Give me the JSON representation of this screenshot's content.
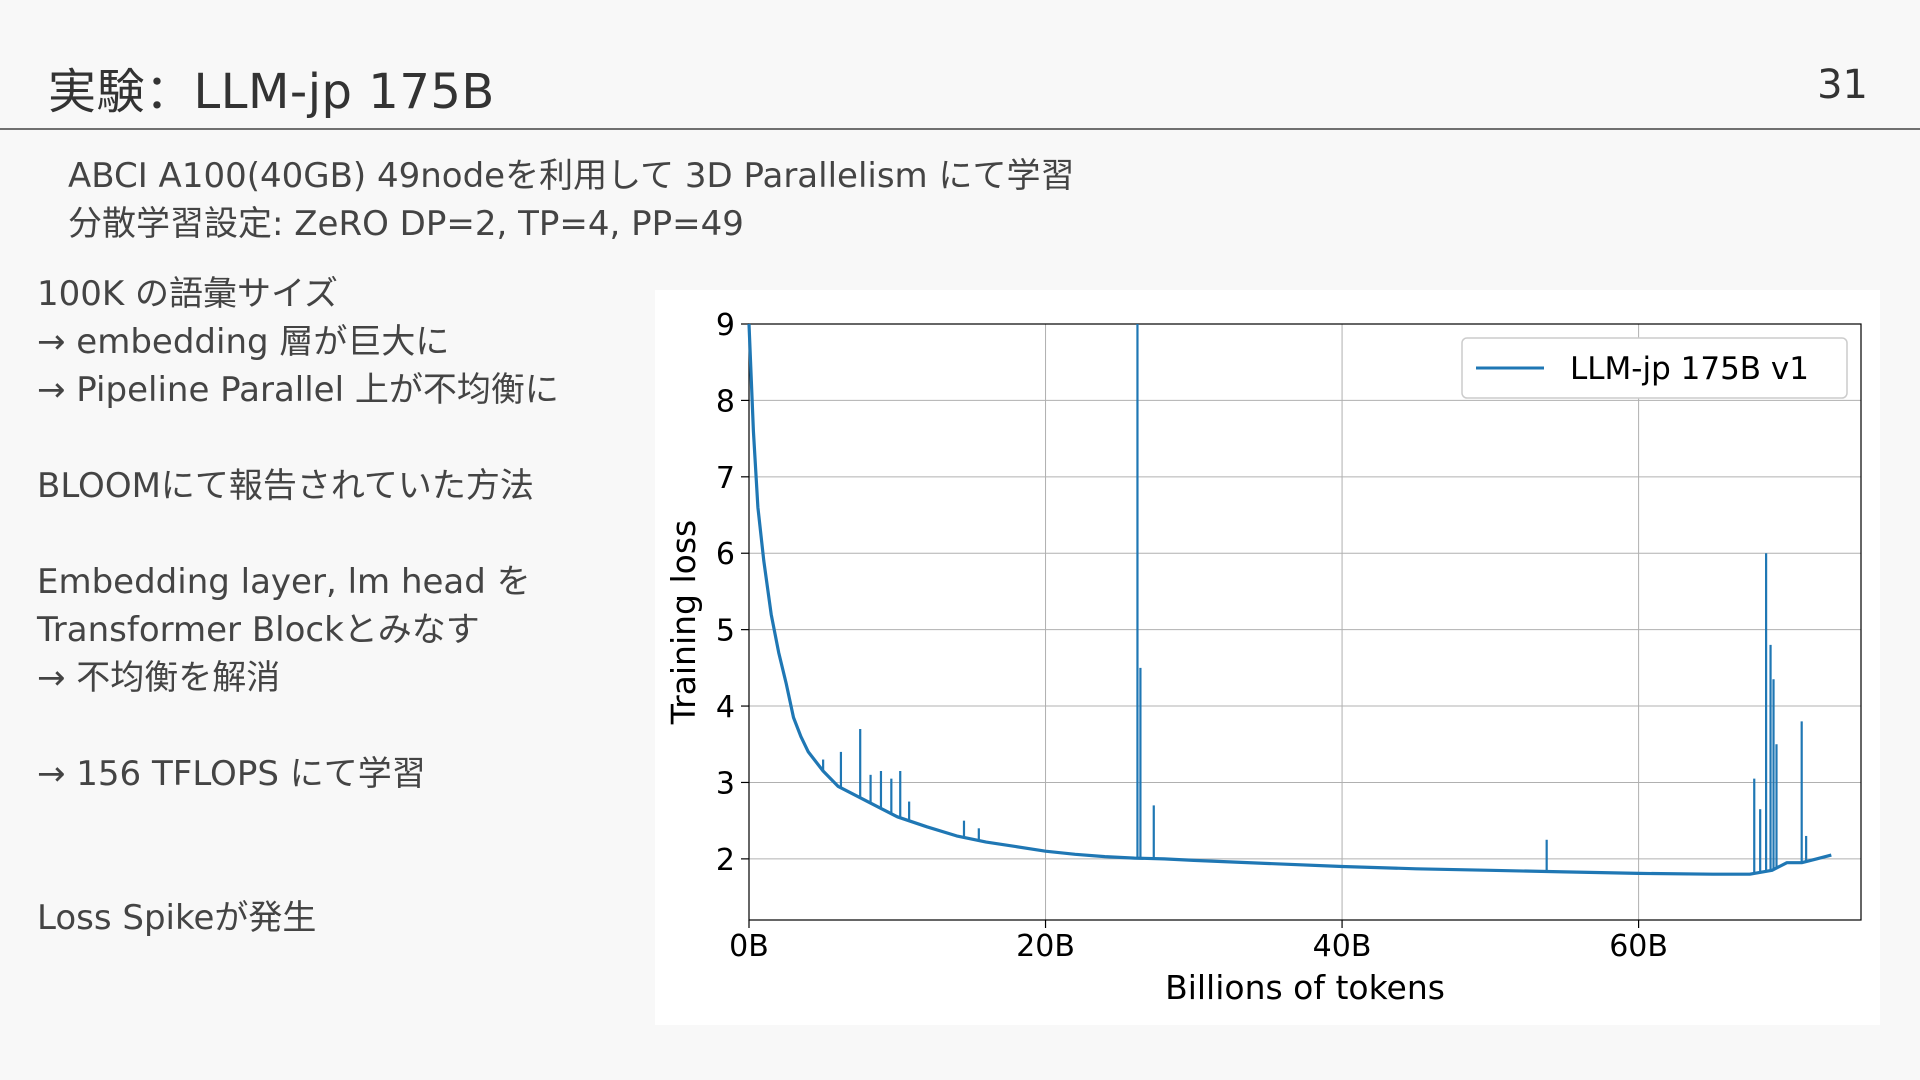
{
  "slide": {
    "title": "実験：LLM-jp 175B",
    "page_number": "31"
  },
  "subtitle": {
    "line1": "ABCI A100(40GB) 49nodeを利用して 3D Parallelism にて学習",
    "line2": "分散学習設定: ZeRO DP=2, TP=4, PP=49"
  },
  "notes": {
    "vocab_line": "100K の語彙サイズ",
    "embedding_line": "→ embedding 層が巨大に",
    "pipeline_line": "→ Pipeline Parallel 上が不均衡に",
    "bloom_line": "BLOOMにて報告されていた方法",
    "layers_line": "Embedding layer, lm head を",
    "block_line": "Transformer Blockとみなす",
    "resolve_line": "→ 不均衡を解消",
    "tflops_line": "→ 156 TFLOPS にて学習",
    "spike_line": "Loss Spikeが発生"
  },
  "colors": {
    "series": "#1f77b4",
    "grid": "#b0b0b0",
    "text": "#3b3b3b"
  },
  "chart_data": {
    "type": "line",
    "title": "",
    "xlabel": "Billions of tokens",
    "ylabel": "Training loss",
    "xlim": [
      0,
      75
    ],
    "ylim": [
      1.2,
      9
    ],
    "x_ticks": [
      0,
      20,
      40,
      60
    ],
    "x_tick_labels": [
      "0B",
      "20B",
      "40B",
      "60B"
    ],
    "y_ticks": [
      2,
      3,
      4,
      5,
      6,
      7,
      8,
      9
    ],
    "y_tick_labels": [
      "2",
      "3",
      "4",
      "5",
      "6",
      "7",
      "8",
      "9"
    ],
    "grid": true,
    "legend_position": "top-right",
    "series": [
      {
        "name": "LLM-jp 175B v1",
        "color": "#1f77b4",
        "x": [
          0,
          0.3,
          0.6,
          1.0,
          1.5,
          2.0,
          2.5,
          3.0,
          3.5,
          4.0,
          5.0,
          6.0,
          7.0,
          8.0,
          9.0,
          10.0,
          12.0,
          14.0,
          16.0,
          18.0,
          20.0,
          22.0,
          24.0,
          26.0,
          28.0,
          30.0,
          35.0,
          40.0,
          45.0,
          50.0,
          55.0,
          60.0,
          65.0,
          67.5,
          69.0,
          70.0,
          71.0,
          72.0,
          73.0
        ],
        "y": [
          9.0,
          7.6,
          6.6,
          5.9,
          5.2,
          4.7,
          4.3,
          3.85,
          3.6,
          3.4,
          3.15,
          2.95,
          2.85,
          2.75,
          2.65,
          2.55,
          2.42,
          2.3,
          2.22,
          2.16,
          2.1,
          2.06,
          2.03,
          2.01,
          2.0,
          1.98,
          1.94,
          1.9,
          1.87,
          1.85,
          1.83,
          1.81,
          1.8,
          1.8,
          1.85,
          1.95,
          1.95,
          2.0,
          2.05
        ]
      }
    ],
    "spikes": [
      {
        "x": 5.0,
        "y": 3.3
      },
      {
        "x": 6.2,
        "y": 3.4
      },
      {
        "x": 7.5,
        "y": 3.7
      },
      {
        "x": 8.2,
        "y": 3.1
      },
      {
        "x": 8.9,
        "y": 3.15
      },
      {
        "x": 9.6,
        "y": 3.05
      },
      {
        "x": 10.2,
        "y": 3.15
      },
      {
        "x": 10.8,
        "y": 2.75
      },
      {
        "x": 14.5,
        "y": 2.5
      },
      {
        "x": 15.5,
        "y": 2.4
      },
      {
        "x": 26.2,
        "y": 9.0
      },
      {
        "x": 26.4,
        "y": 4.5
      },
      {
        "x": 27.3,
        "y": 2.7
      },
      {
        "x": 53.8,
        "y": 2.25
      },
      {
        "x": 67.8,
        "y": 3.05
      },
      {
        "x": 68.2,
        "y": 2.65
      },
      {
        "x": 68.6,
        "y": 6.0
      },
      {
        "x": 68.9,
        "y": 4.8
      },
      {
        "x": 69.1,
        "y": 4.35
      },
      {
        "x": 69.3,
        "y": 3.5
      },
      {
        "x": 71.0,
        "y": 3.8
      },
      {
        "x": 71.3,
        "y": 2.3
      }
    ]
  }
}
